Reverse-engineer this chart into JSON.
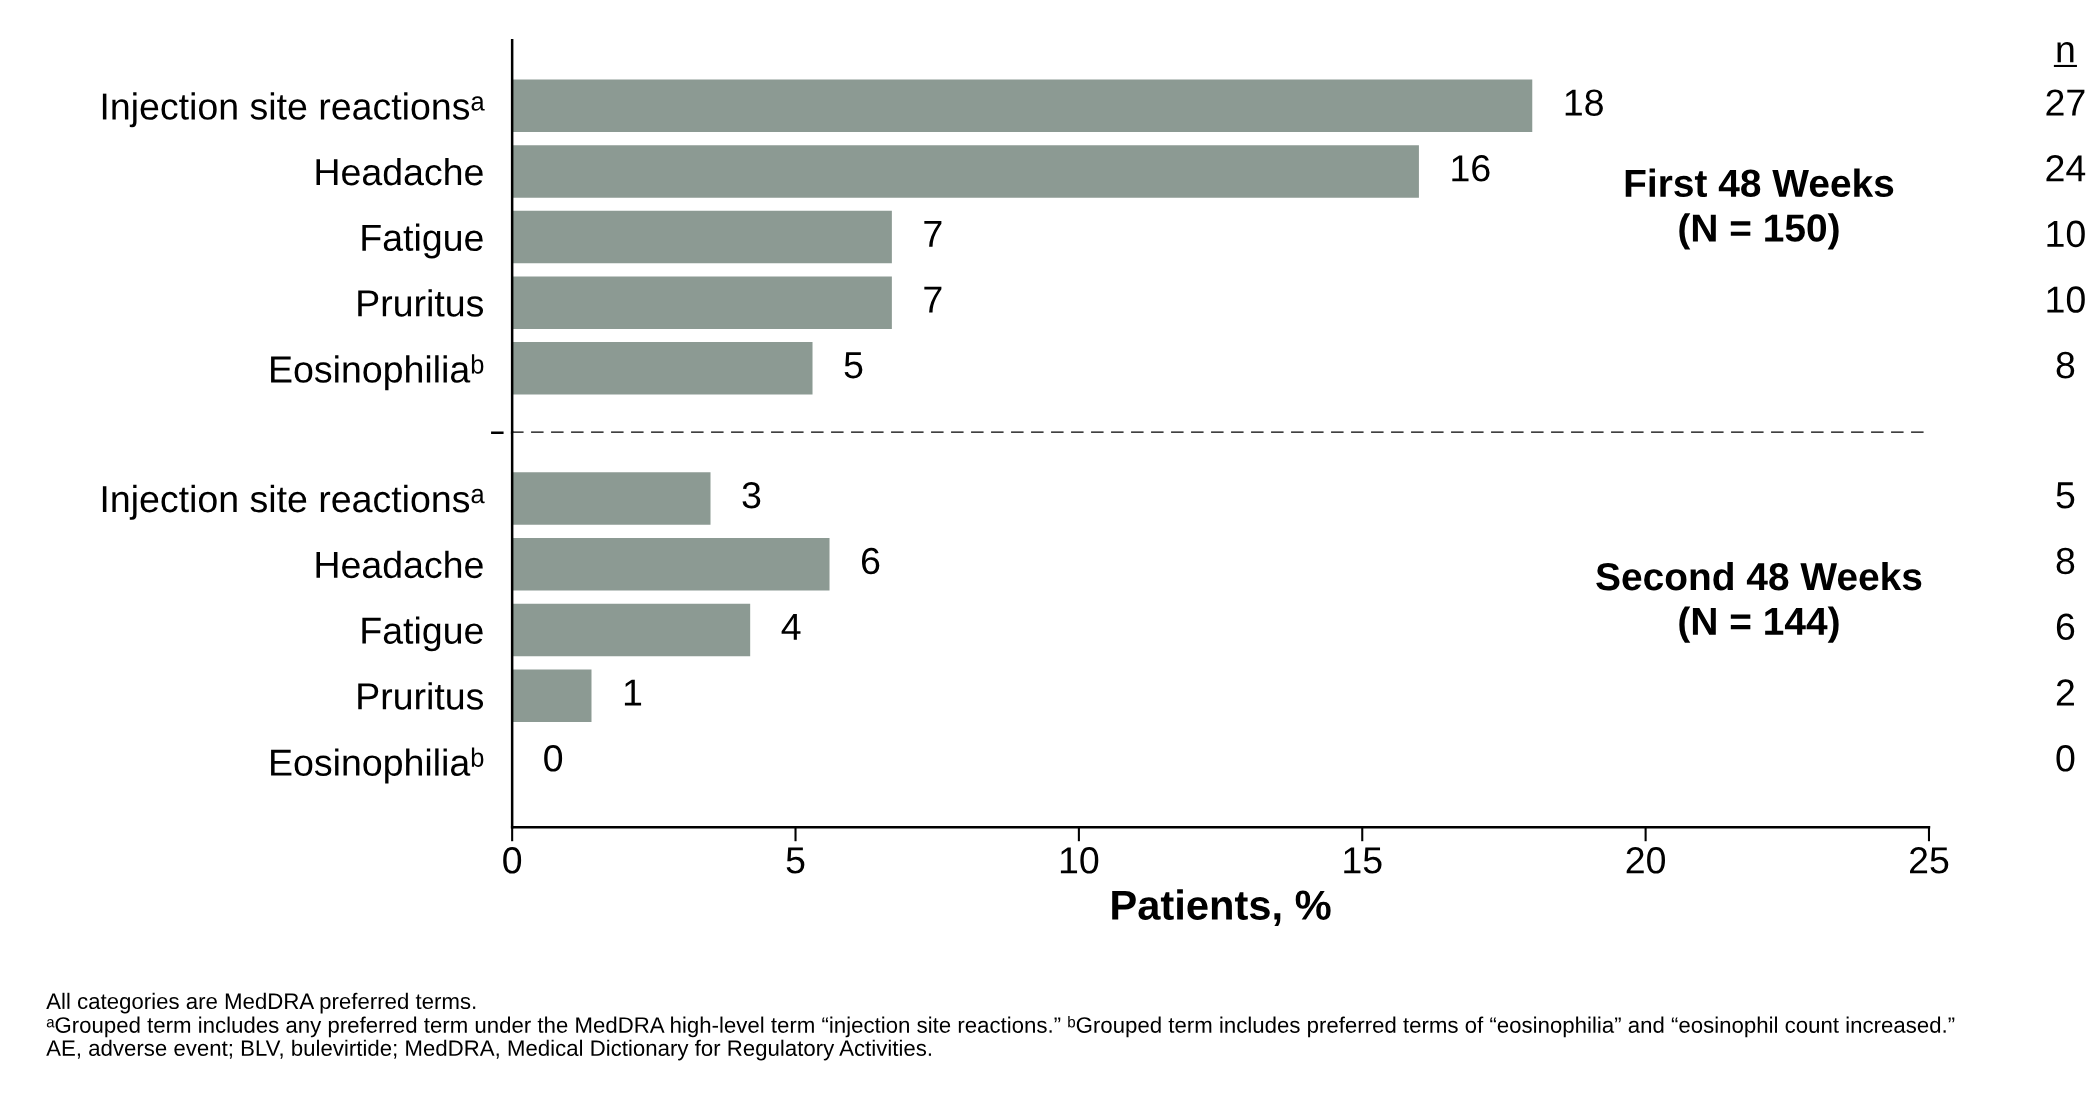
{
  "chart_data": [
    {
      "type": "bar",
      "orientation": "horizontal",
      "title": "First 48 Weeks\n(N = 150)",
      "categories": [
        "Injection site reactionsᵃ",
        "Headache",
        "Fatigue",
        "Pruritus",
        "Eosinophiliaᵇ"
      ],
      "values": [
        18.0,
        16.0,
        6.7,
        6.7,
        5.3
      ],
      "value_labels": [
        "18",
        "16",
        "7",
        "7",
        "5"
      ],
      "color": "#8c9a93",
      "xlim": [
        0,
        25
      ],
      "xticks": [
        0,
        5,
        10,
        15,
        20,
        25
      ],
      "tick_labels": "y",
      "grid": false,
      "legend": false,
      "annotations": [
        "n",
        "27",
        "24",
        "10",
        "10",
        "8"
      ]
    },
    {
      "type": "bar",
      "orientation": "horizontal",
      "title": "Second 48 Weeks\n(N = 144)",
      "xlabel": "Patients, %",
      "categories": [
        "Injection site reactionsᵃ",
        "Headache",
        "Fatigue",
        "Pruritus",
        "Eosinophiliaᵇ"
      ],
      "values": [
        3.5,
        5.6,
        4.2,
        1.4,
        0
      ],
      "value_labels": [
        "3",
        "6",
        "4",
        "1",
        "0"
      ],
      "color": "#8c9a93",
      "xlim": [
        0,
        25
      ],
      "xticks": [
        0,
        5,
        10,
        15,
        20,
        25
      ],
      "grid": false,
      "legend": false,
      "annotations": [
        "5",
        "8",
        "6",
        "2",
        "0",
        "All categories are MedDRA preferred terms.",
        "ᵃGrouped term includes any preferred term under the MedDRA high-level term “injection site reactions.” ᵇGrouped term includes preferred terms of “eosinophilia” and “eosinophil count increased.”",
        "AE, adverse event; BLV, bulevirtide; MedDRA, Medical Dictionary for Regulatory Activities."
      ]
    }
  ]
}
